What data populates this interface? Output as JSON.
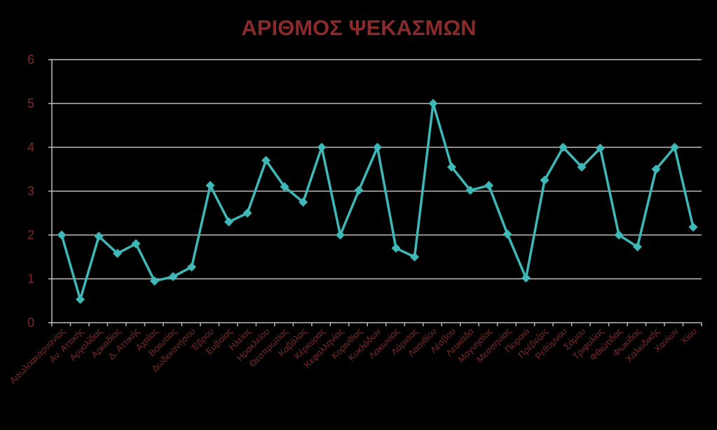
{
  "chart_data": {
    "type": "line",
    "title": "ΑΡΙΘΜΟΣ ΨΕΚΑΣΜΩΝ",
    "xlabel": "",
    "ylabel": "",
    "ylim": [
      0,
      6
    ],
    "yticks": [
      "0",
      "1",
      "2",
      "3",
      "4",
      "5",
      "6"
    ],
    "grid": true,
    "legend": "none",
    "colors": {
      "background": "#000000",
      "line": "#3fb8b8",
      "grid": "#bdbdbd",
      "text": "#7a2a2a",
      "title": "#8a2a2a"
    },
    "categories": [
      "Αιτωλοακαρνανίας",
      "Αν. Αττικής",
      "Αργολίδας",
      "Αρκαδίας",
      "Δ. Αττικής",
      "Αχαΐας",
      "Βοιωτίας",
      "Δωδεκανήσου",
      "Έβρου",
      "Ευβοίας",
      "Ηλείας",
      "Ηρακλείου",
      "Θεσπρωτίας",
      "Καβάλας",
      "Κέρκυρας",
      "Κεφαλληνίας",
      "Κορινθίας",
      "Κυκλάδων",
      "Λακωνίας",
      "Λάρισας",
      "Λασιθίου",
      "Λέσβου",
      "Λευκάδα",
      "Μαγνησίας",
      "Μεσσηνίας",
      "Πειραιά",
      "Πρέβεζας",
      "Ρεθύμνου",
      "Σάμου",
      "Τριφυλίας",
      "Φθιώτιδας",
      "Φωκίδας",
      "Χαλκιδικής",
      "Χανίων",
      "Χίου"
    ],
    "values": [
      2,
      0.53,
      1.97,
      1.58,
      1.8,
      0.95,
      1.05,
      1.27,
      3.13,
      2.3,
      2.5,
      3.7,
      3.1,
      2.75,
      4,
      2,
      3.02,
      4,
      1.7,
      1.5,
      5,
      3.55,
      3.02,
      3.13,
      2.02,
      1.02,
      3.25,
      4,
      3.55,
      3.98,
      2,
      1.73,
      3.5,
      4,
      2.18
    ]
  }
}
